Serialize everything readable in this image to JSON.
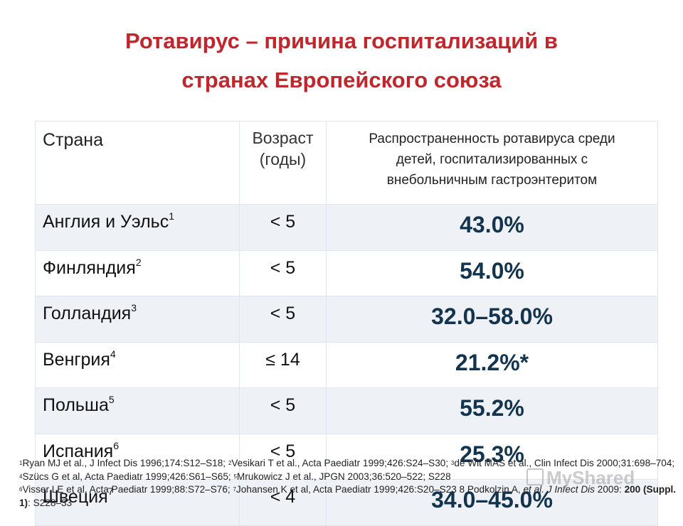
{
  "title": {
    "line1": "Ротавирус – причина госпитализаций в",
    "line2": "странах Европейского союза"
  },
  "table": {
    "headers": {
      "country": "Страна",
      "age_line1": "Возраст",
      "age_line2": "(годы)",
      "prev_line1": "Распространенность ротавируса среди",
      "prev_line2": "детей, госпитализированных с",
      "prev_line3": "внебольничным гастроэнтеритом"
    },
    "rows": [
      {
        "country": "Англия и Уэльс",
        "ref": "1",
        "age": "< 5",
        "prevalence": "43.0%"
      },
      {
        "country": "Финляндия",
        "ref": "2",
        "age": "< 5",
        "prevalence": "54.0%"
      },
      {
        "country": "Голландия",
        "ref": "3",
        "age": "< 5",
        "prevalence": "32.0–58.0%"
      },
      {
        "country": "Венгрия",
        "ref": "4",
        "age": "≤ 14",
        "prevalence": "21.2%*"
      },
      {
        "country": "Польша",
        "ref": "5",
        "age": "< 5",
        "prevalence": "55.2%"
      },
      {
        "country": "Испания",
        "ref": "6",
        "age": "< 5",
        "prevalence": "25.3%"
      },
      {
        "country": "Швеция",
        "ref": "7",
        "age": "< 4",
        "prevalence": "34.0–45.0%"
      }
    ]
  },
  "refs": {
    "r1n": "1",
    "r1": "Ryan MJ et al., J Infect Dis 1996;174:S12–S18; ",
    "r2n": "2",
    "r2": "Vesikari T et al., Acta Paediatr 1999;426:S24–S30; ",
    "r3n": "3",
    "r3": "de Wit MAS et al., Clin Infect Dis 2000;31:698–704; ",
    "r4n": "4",
    "r4": "Szücs G et al, Acta Paediatr 1999;426:S61–S65; ",
    "r5n": "5",
    "r5": "Mrukowicz J et al., JPGN 2003;36:520–522; S228",
    "r6n": "6",
    "r6": "Visser LE et al, Acta Paediatr 1999;88:S72–S76; ",
    "r7n": "7",
    "r7": "Johansen K et al, Acta Paediatr 1999;426:S20–S23 8 Podkolzin A, ",
    "r8_etal": "et al.",
    "r8_journal": " J Infect Dis",
    "r8_year": " 2009: ",
    "r8_vol": "200 (Suppl. 1)",
    "r8_pages": ": S228–33"
  },
  "watermark": "MyShared"
}
